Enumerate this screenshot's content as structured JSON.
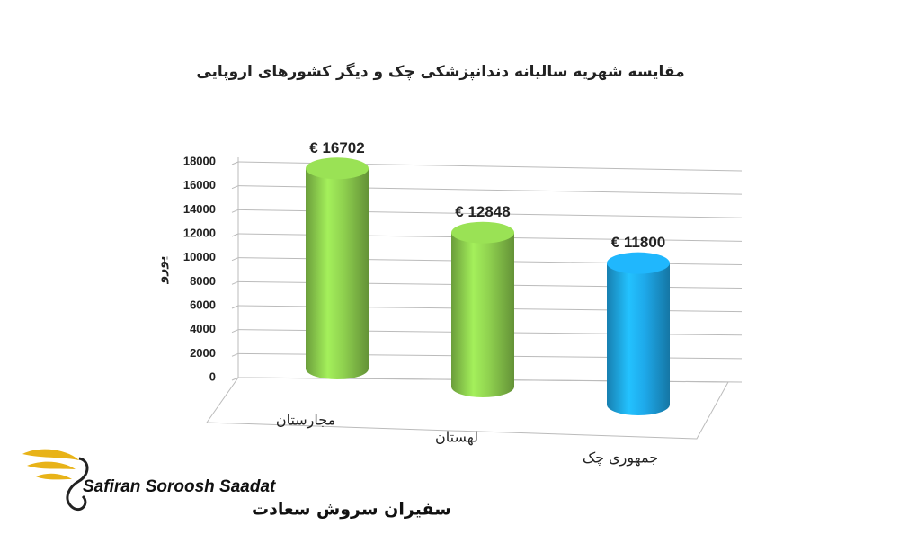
{
  "chart_data": {
    "type": "bar",
    "title": "مقایسه شهریه سالیانه دندانپزشکی چک و دیگر کشورهای اروپایی",
    "y_label": "یورو",
    "categories": [
      "مجارستان",
      "لهستان",
      "جمهوری چک"
    ],
    "values": [
      16702,
      12848,
      11800
    ],
    "value_labels": [
      "€ 16702",
      "€ 12848",
      "€ 11800"
    ],
    "colors": [
      "#8fd14f",
      "#8fd14f",
      "#1ea9ea"
    ],
    "ylim": [
      0,
      18000
    ],
    "yticks": [
      0,
      2000,
      4000,
      6000,
      8000,
      10000,
      12000,
      14000,
      16000,
      18000
    ],
    "grid": true
  },
  "logo": {
    "latin": "Safiran Soroosh Saadat",
    "persian": "سفیران سروش سعادت"
  }
}
